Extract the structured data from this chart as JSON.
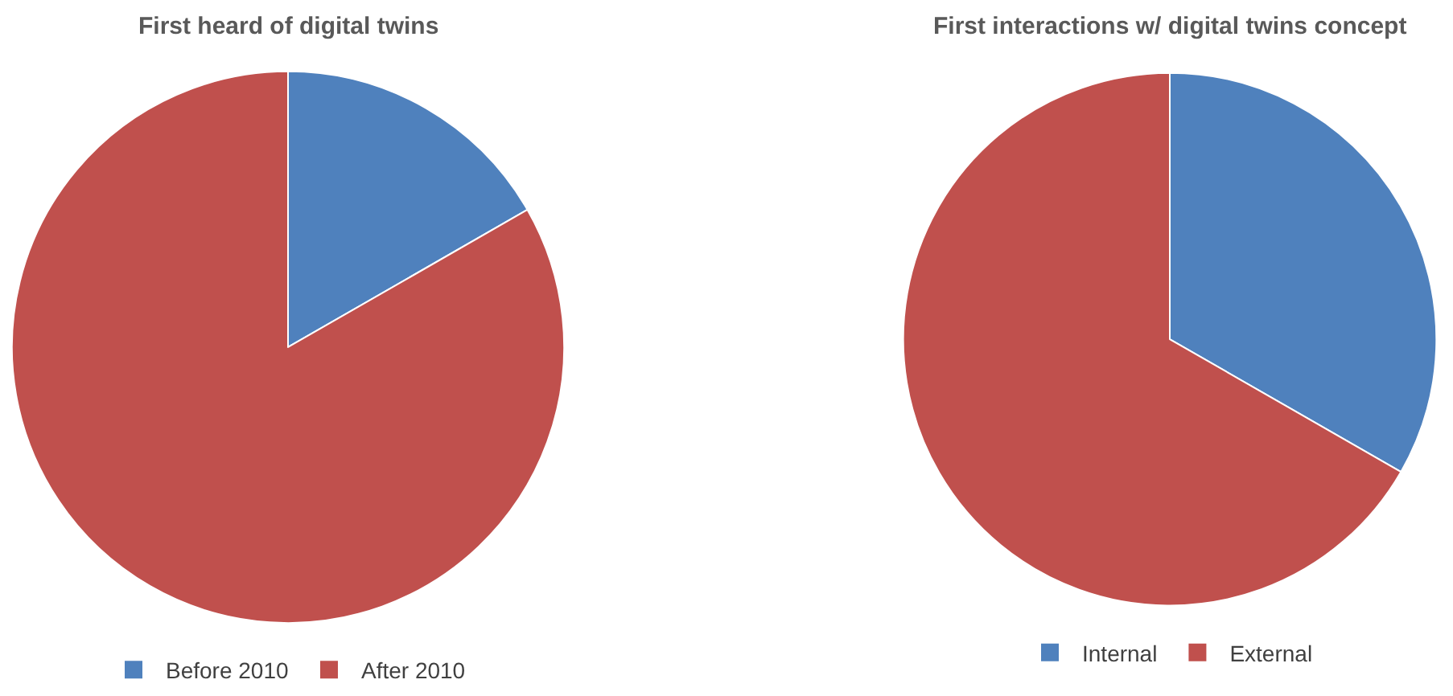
{
  "chart_data": [
    {
      "type": "pie",
      "title": "First heard of digital twins",
      "categories": [
        "Before 2010",
        "After 2010"
      ],
      "values": [
        16.7,
        83.3
      ],
      "colors": [
        "#4f81bd",
        "#c0504d"
      ],
      "legend": "bottom"
    },
    {
      "type": "pie",
      "title": "First interactions w/ digital twins concept",
      "categories": [
        "Internal",
        "External"
      ],
      "values": [
        33.3,
        66.7
      ],
      "colors": [
        "#4f81bd",
        "#c0504d"
      ],
      "legend": "bottom"
    }
  ]
}
